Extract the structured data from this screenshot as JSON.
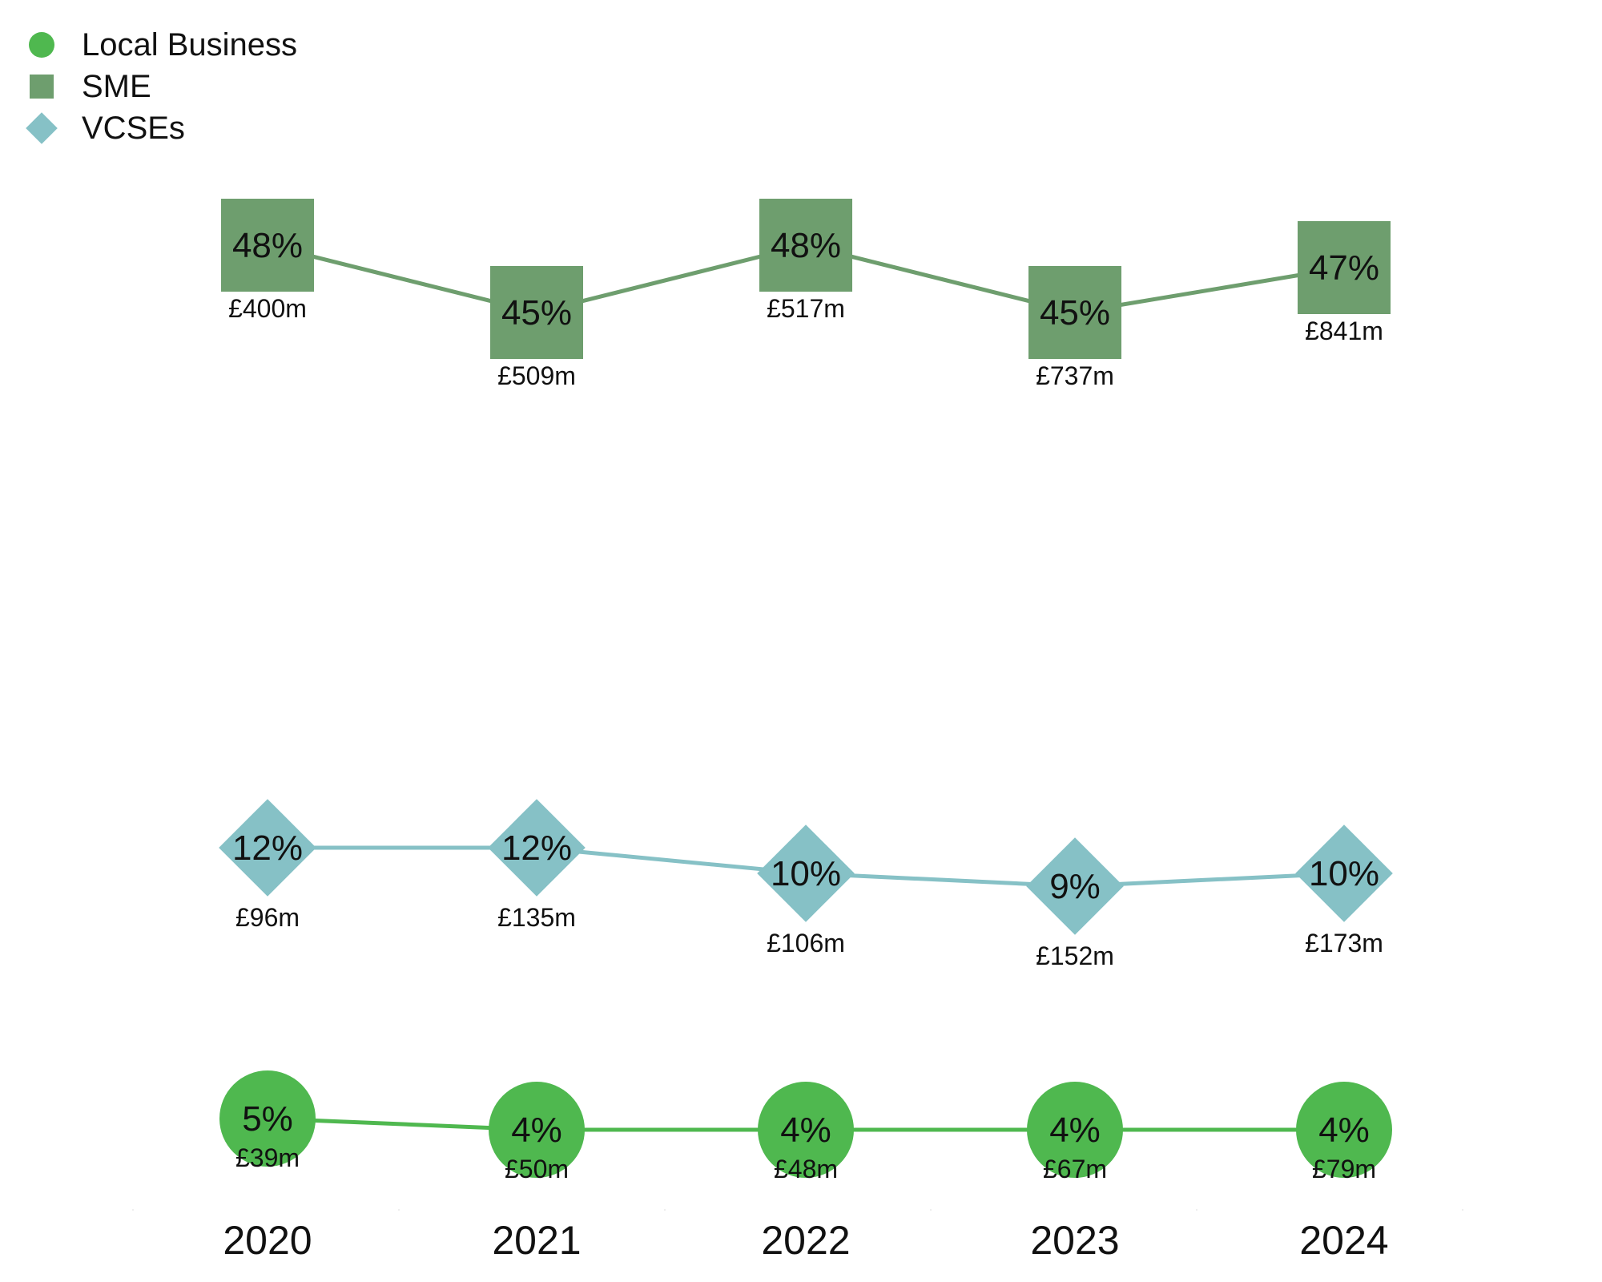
{
  "chart_data": {
    "type": "line",
    "categories": [
      "2020",
      "2021",
      "2022",
      "2023",
      "2024"
    ],
    "legend_position": "top-left",
    "grid": false,
    "series": [
      {
        "name": "SME",
        "marker": "square",
        "color": "#6e9e6e",
        "values": [
          48,
          45,
          48,
          45,
          47
        ],
        "value_labels": [
          "48%",
          "45%",
          "48%",
          "45%",
          "47%"
        ],
        "spend_labels": [
          "£400m",
          "£509m",
          "£517m",
          "£737m",
          "£841m"
        ]
      },
      {
        "name": "VCSEs",
        "marker": "diamond",
        "color": "#86c1c6",
        "values": [
          12,
          12,
          10,
          9,
          10
        ],
        "value_labels": [
          "12%",
          "12%",
          "10%",
          "9%",
          "10%"
        ],
        "spend_labels": [
          "£96m",
          "£135m",
          "£106m",
          "£152m",
          "£173m"
        ]
      },
      {
        "name": "Local Business",
        "marker": "circle",
        "color": "#4fb84f",
        "values": [
          5,
          4,
          4,
          4,
          4
        ],
        "value_labels": [
          "5%",
          "4%",
          "4%",
          "4%",
          "4%"
        ],
        "spend_labels": [
          "£39m",
          "£50m",
          "£48m",
          "£67m",
          "£79m"
        ]
      }
    ]
  },
  "legend": {
    "items": [
      {
        "label": "Local Business",
        "color": "#4fb84f",
        "icon": "circle-icon"
      },
      {
        "label": "SME",
        "color": "#6e9e6e",
        "icon": "square-icon"
      },
      {
        "label": "VCSEs",
        "color": "#86c1c6",
        "icon": "diamond-icon"
      }
    ]
  }
}
